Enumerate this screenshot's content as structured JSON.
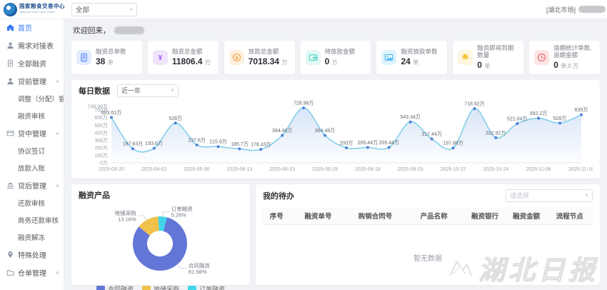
{
  "header": {
    "logo_title": "国家粮食交易中心",
    "logo_subtitle": "National Grain Trade Center",
    "market_filter": "全部",
    "user_market": "[湖北市场]"
  },
  "sidebar": {
    "items": [
      {
        "label": "首页",
        "icon": "home-icon",
        "active": true
      },
      {
        "label": "需求对接表",
        "icon": "user-icon"
      },
      {
        "label": "全部融资",
        "icon": "doc-icon"
      },
      {
        "label": "贷前管理",
        "icon": "user-icon",
        "state": "expanded",
        "children": [
          "调整（分配）银行",
          "融资审核"
        ]
      },
      {
        "label": "贷中管理",
        "icon": "card-icon",
        "state": "expanded",
        "children": [
          "协议签订",
          "放款入账"
        ]
      },
      {
        "label": "贷后管理",
        "icon": "bank-icon",
        "state": "expanded",
        "children": [
          "还款审核",
          "商务还款审核",
          "融资解冻"
        ]
      },
      {
        "label": "特殊处理",
        "icon": "pin-icon"
      },
      {
        "label": "仓单管理",
        "icon": "folder-icon",
        "state": "collapsed",
        "children": []
      }
    ]
  },
  "welcome": {
    "prefix": "欢迎回来，"
  },
  "stat_cards": [
    {
      "label": "融资总单数",
      "value": "38",
      "unit": "单",
      "icon": "doc-icon",
      "color": "#4a7df9"
    },
    {
      "label": "融资总金额",
      "value": "11806.4",
      "unit": "万",
      "icon": "yuan-icon",
      "color": "#a45bf0"
    },
    {
      "label": "放款总金额",
      "value": "7018.34",
      "unit": "万",
      "icon": "coin-icon",
      "color": "#f59a3e"
    },
    {
      "label": "待放款金额",
      "value": "0",
      "unit": "万",
      "icon": "wallet-icon",
      "color": "#49d4c2"
    },
    {
      "label": "融资放款单数",
      "value": "24",
      "unit": "单",
      "icon": "image-icon",
      "color": "#41b6f0"
    },
    {
      "label": "融资即将到期数量",
      "value": "0",
      "unit": "单",
      "icon": "bell-icon",
      "color": "#f3c53d"
    },
    {
      "label": "逾期统计单数,逾期金额",
      "value": "0",
      "unit": "单,0 万",
      "icon": "clock-icon",
      "color": "#ef5b5b"
    }
  ],
  "chart_data": [
    {
      "type": "line",
      "title": "每日数据",
      "range_selector": "近一年",
      "unit": "万",
      "ylim": [
        0,
        748.96
      ],
      "ytick_values": [
        0,
        100,
        200,
        300,
        400,
        500,
        600,
        700,
        748.96
      ],
      "x_tick_labels": [
        "2025-03-20",
        "2025-04-02",
        "2025-05-30",
        "2025-06-13",
        "2025-06-23",
        "2025-06-25",
        "2025-08-18",
        "2025-09-25",
        "2025-10-22",
        "2025-10-24",
        "2025-11-06",
        "2025-11-18"
      ],
      "tick_every": 2,
      "values": [
        603.01,
        187.63,
        193.6,
        528,
        237.6,
        215.9,
        185.7,
        178.43,
        364.48,
        728.96,
        364.48,
        200,
        205.44,
        205.44,
        543.34,
        317.44,
        197.88,
        718.92,
        332.82,
        521.04,
        592.2,
        528,
        639
      ],
      "line_color": "#82cfe9",
      "point_color": "#4f81d8",
      "area_color": "#a9c5ee",
      "legend_position": "none",
      "grid": false
    },
    {
      "type": "pie",
      "title": "融资产品",
      "start_angle": 15,
      "slices": [
        {
          "name": "合同融资",
          "percent": 81.58,
          "color": "#6276d8",
          "label_angle": 140
        },
        {
          "name": "地储采购",
          "percent": 13.16,
          "color": "#f0c24b",
          "label_angle": 330
        },
        {
          "name": "订单融资",
          "percent": 5.26,
          "color": "#40d6e8",
          "label_angle": 6
        }
      ],
      "legend": [
        "合同融资",
        "地储采购",
        "订单融资"
      ],
      "legend_position": "bottom"
    }
  ],
  "todo": {
    "title": "我的待办",
    "filter_placeholder": "请选择",
    "columns": [
      "序号",
      "融资单号",
      "购销合同号",
      "产品名称",
      "融资银行",
      "融资金额",
      "流程节点"
    ],
    "empty_text": "暂无数据"
  },
  "watermark": {
    "text": "湖北日报"
  }
}
